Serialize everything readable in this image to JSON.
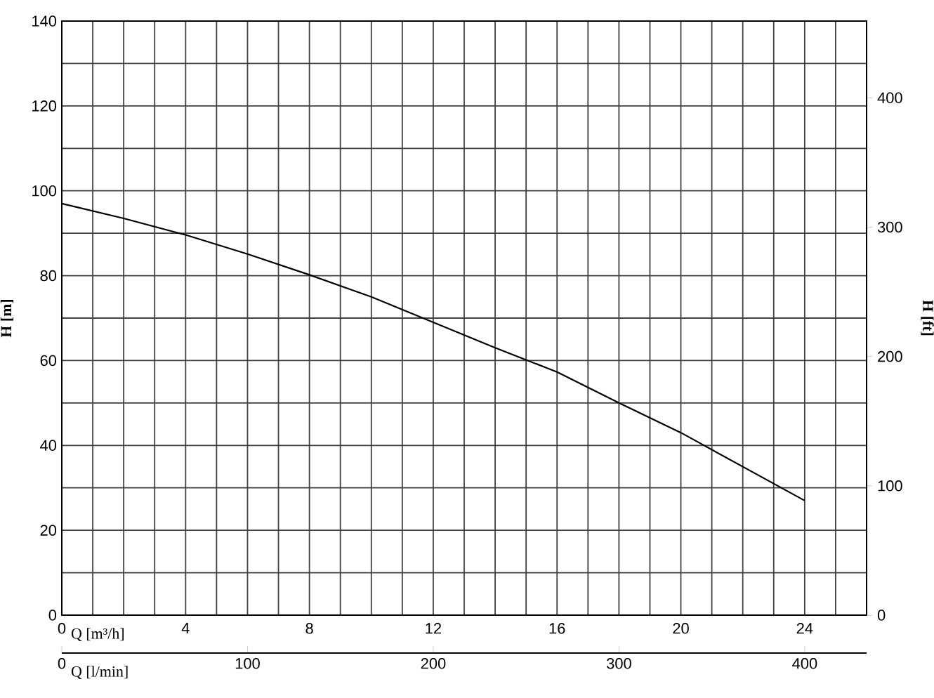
{
  "chart_data": {
    "type": "line",
    "xlabel": "Q [m³/h]",
    "x2label": "Q [l/min]",
    "ylabel": "H [m]",
    "y2label": "H [ft]",
    "xlim": [
      0,
      26
    ],
    "x2lim": [
      0,
      433.3
    ],
    "ylim": [
      0,
      140
    ],
    "y2lim": [
      0,
      459.3
    ],
    "xticks": [
      0,
      {
        "value": 1,
        "label": null
      },
      {
        "value": 2,
        "label": null
      },
      {
        "value": 3,
        "label": null
      },
      4,
      {
        "value": 5,
        "label": null
      },
      {
        "value": 6,
        "label": null
      },
      {
        "value": 7,
        "label": null
      },
      8,
      {
        "value": 9,
        "label": null
      },
      {
        "value": 10,
        "label": null
      },
      {
        "value": 11,
        "label": null
      },
      12,
      {
        "value": 13,
        "label": null
      },
      {
        "value": 14,
        "label": null
      },
      {
        "value": 15,
        "label": null
      },
      16,
      {
        "value": 17,
        "label": null
      },
      {
        "value": 18,
        "label": null
      },
      {
        "value": 19,
        "label": null
      },
      20,
      {
        "value": 21,
        "label": null
      },
      {
        "value": 22,
        "label": null
      },
      {
        "value": 23,
        "label": null
      },
      24,
      {
        "value": 25,
        "label": null
      },
      {
        "value": 26,
        "label": null
      }
    ],
    "x2ticks": [
      0,
      100,
      200,
      300,
      400
    ],
    "yticks": [
      0,
      {
        "value": 10,
        "label": null
      },
      20,
      {
        "value": 30,
        "label": null
      },
      40,
      {
        "value": 50,
        "label": null
      },
      60,
      {
        "value": 70,
        "label": null
      },
      80,
      {
        "value": 90,
        "label": null
      },
      100,
      {
        "value": 110,
        "label": null
      },
      120,
      {
        "value": 130,
        "label": null
      },
      140
    ],
    "y2ticks": [
      0,
      100,
      200,
      300,
      400
    ],
    "grid": true,
    "series": [
      {
        "color": "#000000",
        "x": [
          0,
          2,
          4,
          6,
          8,
          10,
          12,
          14,
          16,
          18,
          20,
          22,
          24
        ],
        "values": [
          97,
          93.5,
          89.6,
          85.1,
          80.2,
          75,
          69,
          63,
          57.3,
          50,
          43,
          35,
          27
        ]
      }
    ]
  }
}
